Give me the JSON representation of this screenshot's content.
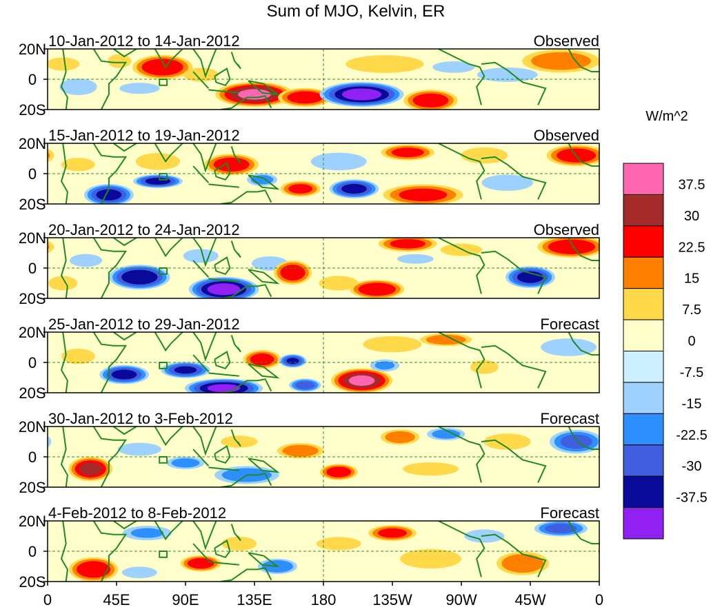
{
  "chart_data": {
    "type": "heatmap",
    "title": "Sum of MJO, Kelvin, ER",
    "units_label": "W/m^2",
    "x_ticks": [
      "0",
      "45E",
      "90E",
      "135E",
      "180",
      "135W",
      "90W",
      "45W",
      "0"
    ],
    "y_ticks": [
      "20N",
      "0",
      "20S"
    ],
    "xlim": [
      0,
      360
    ],
    "ylim": [
      -20,
      20
    ],
    "colorbar": {
      "labels": [
        "37.5",
        "30",
        "22.5",
        "15",
        "7.5",
        "0",
        "-7.5",
        "-15",
        "-22.5",
        "-30",
        "-37.5"
      ],
      "colors": [
        "#ff66b2",
        "#a52a2a",
        "#ff0000",
        "#ff7f00",
        "#ffd94a",
        "#ffffcc",
        "#ccf0ff",
        "#9fd1ff",
        "#2e8fff",
        "#3f5fe0",
        "#0a0a9a",
        "#9021f2"
      ]
    },
    "panels": [
      {
        "period": "10-Jan-2012 to 14-Jan-2012",
        "status": "Observed",
        "blobs": [
          {
            "lon": 75,
            "lat": 8,
            "rx": 22,
            "ry": 9,
            "v": 30
          },
          {
            "lon": 47,
            "lat": 12,
            "rx": 10,
            "ry": 6,
            "v": 12
          },
          {
            "lon": 60,
            "lat": -6,
            "rx": 18,
            "ry": 5,
            "v": -10
          },
          {
            "lon": 100,
            "lat": 3,
            "rx": 15,
            "ry": 6,
            "v": 12
          },
          {
            "lon": 135,
            "lat": -10,
            "rx": 28,
            "ry": 9,
            "v": 38
          },
          {
            "lon": 168,
            "lat": -12,
            "rx": 20,
            "ry": 7,
            "v": 28
          },
          {
            "lon": 205,
            "lat": -10,
            "rx": 30,
            "ry": 9,
            "v": -40
          },
          {
            "lon": 220,
            "lat": 10,
            "rx": 35,
            "ry": 8,
            "v": 10
          },
          {
            "lon": 250,
            "lat": -14,
            "rx": 20,
            "ry": 8,
            "v": 28
          },
          {
            "lon": 265,
            "lat": 8,
            "rx": 18,
            "ry": 5,
            "v": -12
          },
          {
            "lon": 300,
            "lat": 3,
            "rx": 25,
            "ry": 6,
            "v": -14
          },
          {
            "lon": 335,
            "lat": 12,
            "rx": 30,
            "ry": 9,
            "v": 20
          },
          {
            "lon": 20,
            "lat": -5,
            "rx": 18,
            "ry": 8,
            "v": -8
          },
          {
            "lon": 10,
            "lat": 10,
            "rx": 15,
            "ry": 6,
            "v": 10
          }
        ]
      },
      {
        "period": "15-Jan-2012 to 19-Jan-2012",
        "status": "Observed",
        "blobs": [
          {
            "lon": 40,
            "lat": -14,
            "rx": 18,
            "ry": 8,
            "v": -32
          },
          {
            "lon": 72,
            "lat": -5,
            "rx": 18,
            "ry": 5,
            "v": -32
          },
          {
            "lon": 72,
            "lat": 8,
            "rx": 18,
            "ry": 7,
            "v": 15
          },
          {
            "lon": 120,
            "lat": 6,
            "rx": 20,
            "ry": 8,
            "v": 28
          },
          {
            "lon": 140,
            "lat": -4,
            "rx": 12,
            "ry": 5,
            "v": -18
          },
          {
            "lon": 165,
            "lat": -10,
            "rx": 15,
            "ry": 6,
            "v": 25
          },
          {
            "lon": 200,
            "lat": -10,
            "rx": 18,
            "ry": 7,
            "v": -32
          },
          {
            "lon": 245,
            "lat": -14,
            "rx": 30,
            "ry": 8,
            "v": 25
          },
          {
            "lon": 235,
            "lat": 14,
            "rx": 20,
            "ry": 6,
            "v": 25
          },
          {
            "lon": 285,
            "lat": 12,
            "rx": 20,
            "ry": 7,
            "v": 12
          },
          {
            "lon": 300,
            "lat": -6,
            "rx": 22,
            "ry": 7,
            "v": -12
          },
          {
            "lon": 345,
            "lat": 12,
            "rx": 22,
            "ry": 8,
            "v": 28
          },
          {
            "lon": 190,
            "lat": 8,
            "rx": 25,
            "ry": 8,
            "v": -10
          },
          {
            "lon": 20,
            "lat": 6,
            "rx": 15,
            "ry": 6,
            "v": 10
          }
        ]
      },
      {
        "period": "20-Jan-2012 to 24-Jan-2012",
        "status": "Observed",
        "blobs": [
          {
            "lon": 60,
            "lat": -6,
            "rx": 22,
            "ry": 9,
            "v": -36
          },
          {
            "lon": 115,
            "lat": -14,
            "rx": 25,
            "ry": 9,
            "v": -40
          },
          {
            "lon": 100,
            "lat": 8,
            "rx": 15,
            "ry": 6,
            "v": -12
          },
          {
            "lon": 145,
            "lat": 3,
            "rx": 15,
            "ry": 6,
            "v": -14
          },
          {
            "lon": 160,
            "lat": -3,
            "rx": 14,
            "ry": 9,
            "v": 28
          },
          {
            "lon": 190,
            "lat": -10,
            "rx": 16,
            "ry": 6,
            "v": 15
          },
          {
            "lon": 215,
            "lat": -14,
            "rx": 20,
            "ry": 7,
            "v": 30
          },
          {
            "lon": 235,
            "lat": 16,
            "rx": 22,
            "ry": 6,
            "v": 25
          },
          {
            "lon": 240,
            "lat": 6,
            "rx": 15,
            "ry": 4,
            "v": -14
          },
          {
            "lon": 315,
            "lat": -6,
            "rx": 18,
            "ry": 8,
            "v": -33
          },
          {
            "lon": 342,
            "lat": 14,
            "rx": 25,
            "ry": 8,
            "v": 30
          },
          {
            "lon": 10,
            "lat": -10,
            "rx": 12,
            "ry": 6,
            "v": 14
          },
          {
            "lon": 25,
            "lat": 5,
            "rx": 15,
            "ry": 6,
            "v": -9
          },
          {
            "lon": 270,
            "lat": 12,
            "rx": 20,
            "ry": 6,
            "v": 8
          }
        ]
      },
      {
        "period": "25-Jan-2012 to 29-Jan-2012",
        "status": "Forecast",
        "blobs": [
          {
            "lon": 50,
            "lat": -8,
            "rx": 18,
            "ry": 7,
            "v": -32
          },
          {
            "lon": 90,
            "lat": -5,
            "rx": 18,
            "ry": 6,
            "v": -30
          },
          {
            "lon": 115,
            "lat": -17,
            "rx": 28,
            "ry": 7,
            "v": -38
          },
          {
            "lon": 140,
            "lat": 2,
            "rx": 14,
            "ry": 7,
            "v": 27
          },
          {
            "lon": 160,
            "lat": 1,
            "rx": 10,
            "ry": 5,
            "v": -30
          },
          {
            "lon": 168,
            "lat": -15,
            "rx": 12,
            "ry": 5,
            "v": -25
          },
          {
            "lon": 205,
            "lat": -12,
            "rx": 22,
            "ry": 9,
            "v": 38
          },
          {
            "lon": 225,
            "lat": 12,
            "rx": 25,
            "ry": 7,
            "v": 12
          },
          {
            "lon": 220,
            "lat": -2,
            "rx": 12,
            "ry": 5,
            "v": -15
          },
          {
            "lon": 285,
            "lat": -3,
            "rx": 12,
            "ry": 6,
            "v": 12
          },
          {
            "lon": 340,
            "lat": 10,
            "rx": 25,
            "ry": 8,
            "v": -10
          },
          {
            "lon": 20,
            "lat": 4,
            "rx": 15,
            "ry": 7,
            "v": 10
          },
          {
            "lon": 260,
            "lat": 15,
            "rx": 20,
            "ry": 5,
            "v": 20
          }
        ]
      },
      {
        "period": "30-Jan-2012 to 3-Feb-2012",
        "status": "Forecast",
        "blobs": [
          {
            "lon": 28,
            "lat": -8,
            "rx": 16,
            "ry": 9,
            "v": 32
          },
          {
            "lon": 60,
            "lat": 5,
            "rx": 20,
            "ry": 6,
            "v": -9
          },
          {
            "lon": 90,
            "lat": -4,
            "rx": 15,
            "ry": 5,
            "v": -18
          },
          {
            "lon": 125,
            "lat": 10,
            "rx": 15,
            "ry": 5,
            "v": 15
          },
          {
            "lon": 130,
            "lat": -12,
            "rx": 25,
            "ry": 7,
            "v": -20
          },
          {
            "lon": 165,
            "lat": 4,
            "rx": 18,
            "ry": 6,
            "v": 20
          },
          {
            "lon": 190,
            "lat": -10,
            "rx": 14,
            "ry": 6,
            "v": 28
          },
          {
            "lon": 230,
            "lat": 13,
            "rx": 15,
            "ry": 6,
            "v": 20
          },
          {
            "lon": 260,
            "lat": 15,
            "rx": 15,
            "ry": 5,
            "v": -18
          },
          {
            "lon": 300,
            "lat": 10,
            "rx": 20,
            "ry": 7,
            "v": 12
          },
          {
            "lon": 345,
            "lat": 10,
            "rx": 20,
            "ry": 9,
            "v": -25
          },
          {
            "lon": 250,
            "lat": -8,
            "rx": 25,
            "ry": 6,
            "v": 10
          }
        ]
      },
      {
        "period": "4-Feb-2012 to 8-Feb-2012",
        "status": "Forecast",
        "blobs": [
          {
            "lon": 30,
            "lat": -12,
            "rx": 18,
            "ry": 9,
            "v": 30
          },
          {
            "lon": 65,
            "lat": 12,
            "rx": 20,
            "ry": 6,
            "v": -15
          },
          {
            "lon": 100,
            "lat": -8,
            "rx": 15,
            "ry": 6,
            "v": 28
          },
          {
            "lon": 125,
            "lat": 5,
            "rx": 15,
            "ry": 6,
            "v": 12
          },
          {
            "lon": 150,
            "lat": -10,
            "rx": 15,
            "ry": 6,
            "v": -22
          },
          {
            "lon": 190,
            "lat": 5,
            "rx": 20,
            "ry": 6,
            "v": 10
          },
          {
            "lon": 225,
            "lat": 12,
            "rx": 18,
            "ry": 6,
            "v": 25
          },
          {
            "lon": 250,
            "lat": -5,
            "rx": 25,
            "ry": 8,
            "v": 15
          },
          {
            "lon": 310,
            "lat": -8,
            "rx": 20,
            "ry": 9,
            "v": 22
          },
          {
            "lon": 335,
            "lat": 15,
            "rx": 20,
            "ry": 6,
            "v": -25
          },
          {
            "lon": 60,
            "lat": -14,
            "rx": 15,
            "ry": 5,
            "v": -12
          },
          {
            "lon": 285,
            "lat": 10,
            "rx": 18,
            "ry": 6,
            "v": -10
          }
        ]
      }
    ]
  }
}
